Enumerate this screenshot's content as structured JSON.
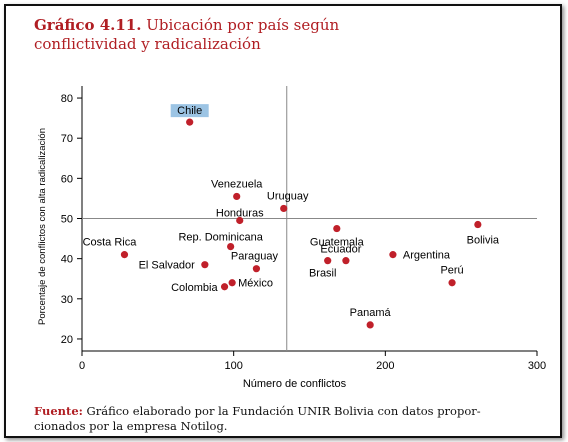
{
  "figure": {
    "title_lead": "Gráfico 4.11.",
    "title_line1": "Ubicación por país según",
    "title_line2": "conflictividad y radicalización",
    "footer_label": "Fuente:",
    "footer_text_line1": "Gráfico elaborado por la Fundación UNIR Bolivia con datos propor-",
    "footer_text_line2": "cionados por la empresa Notilog."
  },
  "colors": {
    "title": "#b01e23",
    "point": "#c0202a",
    "highlight": "#9cc4e4",
    "reference_line": "#888888"
  },
  "chart_data": {
    "type": "scatter",
    "title": "Ubicación por país según conflictividad y radicalización",
    "xlabel": "Número de conflictos",
    "ylabel": "Porcentaje de conflictos con alta radicalización",
    "xlim": [
      0,
      300
    ],
    "ylim": [
      17,
      83
    ],
    "xticks": [
      0,
      100,
      200,
      300
    ],
    "yticks": [
      20,
      30,
      40,
      50,
      60,
      70,
      80
    ],
    "grid": false,
    "reference_lines": {
      "x": 135,
      "y": 50
    },
    "points": [
      {
        "label": "Chile",
        "x": 71,
        "y": 74,
        "highlight": true
      },
      {
        "label": "Venezuela",
        "x": 102,
        "y": 55.5
      },
      {
        "label": "Uruguay",
        "x": 133,
        "y": 52.5
      },
      {
        "label": "Honduras",
        "x": 104,
        "y": 49.5
      },
      {
        "label": "Bolivia",
        "x": 261,
        "y": 48.5
      },
      {
        "label": "Guatemala",
        "x": 168,
        "y": 47.5
      },
      {
        "label": "Rep. Dominicana",
        "x": 98,
        "y": 43
      },
      {
        "label": "Costa Rica",
        "x": 28,
        "y": 41
      },
      {
        "label": "Argentina",
        "x": 205,
        "y": 41
      },
      {
        "label": "Ecuador",
        "x": 174,
        "y": 39.5
      },
      {
        "label": "Brasil",
        "x": 162,
        "y": 39.5
      },
      {
        "label": "El Salvador",
        "x": 81,
        "y": 38.5
      },
      {
        "label": "Paraguay",
        "x": 115,
        "y": 37.5
      },
      {
        "label": "Perú",
        "x": 244,
        "y": 34
      },
      {
        "label": "México",
        "x": 99,
        "y": 34
      },
      {
        "label": "Colombia",
        "x": 94,
        "y": 33
      },
      {
        "label": "Panamá",
        "x": 190,
        "y": 23.5
      }
    ]
  }
}
